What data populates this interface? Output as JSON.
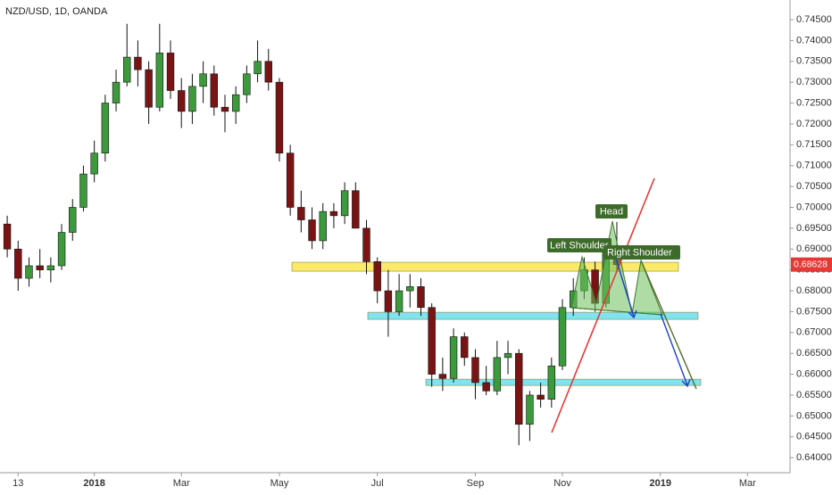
{
  "chart_data": {
    "type": "candlestick",
    "title": "NZD/USD, 1D, OANDA",
    "categories": [
      null,
      "13",
      null,
      null,
      null,
      null,
      null,
      null,
      "2018",
      null,
      null,
      null,
      null,
      null,
      null,
      null,
      "Mar",
      null,
      null,
      null,
      null,
      null,
      null,
      null,
      null,
      "May",
      null,
      null,
      null,
      null,
      null,
      null,
      null,
      null,
      "Jul",
      null,
      null,
      null,
      null,
      null,
      null,
      null,
      null,
      "Sep",
      null,
      null,
      null,
      null,
      null,
      null,
      null,
      "Nov",
      null,
      null,
      null,
      null,
      null,
      null,
      null,
      null,
      "2019",
      null,
      null,
      null,
      null,
      null,
      null,
      null,
      "Mar",
      null,
      null,
      null
    ],
    "open": [
      0.696,
      0.69,
      0.683,
      0.686,
      0.685,
      0.686,
      0.694,
      0.7,
      0.708,
      0.713,
      0.725,
      0.73,
      0.736,
      0.733,
      0.724,
      0.737,
      0.728,
      0.723,
      0.729,
      0.732,
      0.724,
      0.723,
      0.727,
      0.732,
      0.735,
      0.73,
      0.713,
      0.7,
      0.697,
      0.692,
      0.699,
      0.698,
      0.704,
      0.695,
      0.687,
      0.68,
      0.675,
      0.68,
      0.681,
      0.676,
      0.66,
      0.659,
      0.669,
      0.664,
      0.658,
      0.656,
      0.664,
      0.665,
      0.648,
      0.655,
      0.654,
      0.662,
      0.676,
      0.68,
      0.685,
      0.677,
      0.69,
      null,
      null,
      null,
      null,
      null,
      null,
      null,
      null,
      null,
      null,
      null,
      null,
      null,
      null,
      null
    ],
    "high": [
      0.698,
      0.692,
      0.688,
      0.69,
      0.688,
      0.696,
      0.702,
      0.71,
      0.716,
      0.727,
      0.733,
      0.744,
      0.74,
      0.735,
      0.744,
      0.74,
      0.731,
      0.732,
      0.735,
      0.734,
      0.727,
      0.729,
      0.734,
      0.74,
      0.738,
      0.731,
      0.715,
      0.704,
      0.7,
      0.701,
      0.701,
      0.706,
      0.706,
      0.697,
      0.688,
      0.685,
      0.684,
      0.684,
      0.683,
      0.677,
      0.664,
      0.671,
      0.67,
      0.666,
      0.662,
      0.668,
      0.668,
      0.666,
      0.656,
      0.658,
      0.664,
      0.678,
      0.683,
      0.688,
      0.687,
      0.692,
      0.6965,
      null,
      null,
      null,
      null,
      null,
      null,
      null,
      null,
      null,
      null,
      null,
      null,
      null,
      null,
      null
    ],
    "low": [
      0.688,
      0.68,
      0.681,
      0.683,
      0.682,
      0.685,
      0.692,
      0.699,
      0.706,
      0.711,
      0.723,
      0.729,
      0.729,
      0.72,
      0.723,
      0.726,
      0.719,
      0.72,
      0.725,
      0.722,
      0.718,
      0.72,
      0.725,
      0.73,
      0.728,
      0.711,
      0.698,
      0.694,
      0.69,
      0.69,
      0.695,
      0.696,
      0.696,
      0.684,
      0.677,
      0.669,
      0.674,
      0.676,
      0.674,
      0.657,
      0.656,
      0.658,
      0.662,
      0.654,
      0.655,
      0.655,
      0.66,
      0.643,
      0.644,
      0.652,
      0.652,
      0.661,
      0.674,
      0.678,
      0.675,
      0.676,
      0.685,
      null,
      null,
      null,
      null,
      null,
      null,
      null,
      null,
      null,
      null,
      null,
      null,
      null,
      null,
      null
    ],
    "close": [
      0.69,
      0.683,
      0.686,
      0.685,
      0.686,
      0.694,
      0.7,
      0.708,
      0.713,
      0.725,
      0.73,
      0.736,
      0.733,
      0.724,
      0.737,
      0.728,
      0.723,
      0.729,
      0.732,
      0.724,
      0.723,
      0.727,
      0.732,
      0.735,
      0.73,
      0.713,
      0.7,
      0.697,
      0.692,
      0.699,
      0.698,
      0.704,
      0.695,
      0.687,
      0.68,
      0.675,
      0.68,
      0.681,
      0.676,
      0.66,
      0.659,
      0.669,
      0.664,
      0.658,
      0.656,
      0.664,
      0.665,
      0.648,
      0.655,
      0.654,
      0.662,
      0.676,
      0.68,
      0.685,
      0.677,
      0.69,
      0.68628,
      null,
      null,
      null,
      null,
      null,
      null,
      null,
      null,
      null,
      null,
      null,
      null,
      null,
      null,
      null
    ],
    "up_color": "#3c9a3c",
    "down_color": "#7a1414",
    "last_price": 0.68628,
    "last_price_color": "#e53935",
    "ylim": [
      0.6364,
      0.7497
    ],
    "yticks": [
      {
        "value": 0.64,
        "label": "0.64000"
      },
      {
        "value": 0.645,
        "label": "0.64500"
      },
      {
        "value": 0.65,
        "label": "0.65000"
      },
      {
        "value": 0.655,
        "label": "0.65500"
      },
      {
        "value": 0.66,
        "label": "0.66000"
      },
      {
        "value": 0.665,
        "label": "0.66500"
      },
      {
        "value": 0.67,
        "label": "0.67000"
      },
      {
        "value": 0.675,
        "label": "0.67500"
      },
      {
        "value": 0.68,
        "label": "0.68000"
      },
      {
        "value": 0.685,
        "label": "0.68500"
      },
      {
        "value": 0.69,
        "label": "0.69000"
      },
      {
        "value": 0.695,
        "label": "0.69500"
      },
      {
        "value": 0.7,
        "label": "0.70000"
      },
      {
        "value": 0.705,
        "label": "0.70500"
      },
      {
        "value": 0.71,
        "label": "0.71000"
      },
      {
        "value": 0.715,
        "label": "0.71500"
      },
      {
        "value": 0.72,
        "label": "0.72000"
      },
      {
        "value": 0.725,
        "label": "0.72500"
      },
      {
        "value": 0.73,
        "label": "0.73000"
      },
      {
        "value": 0.735,
        "label": "0.73500"
      },
      {
        "value": 0.74,
        "label": "0.74000"
      },
      {
        "value": 0.745,
        "label": "0.74500"
      }
    ],
    "zones": [
      {
        "low": 0.6847,
        "high": 0.68684,
        "color": "#fbe96a"
      },
      {
        "low": 0.67315,
        "high": 0.67486,
        "color": "#7fe3f0"
      },
      {
        "low": 0.65732,
        "high": 0.65882,
        "color": "#7fe3f0"
      }
    ],
    "annotations": [
      "Head",
      "Left Shoulder",
      "Right Shoulder"
    ]
  }
}
